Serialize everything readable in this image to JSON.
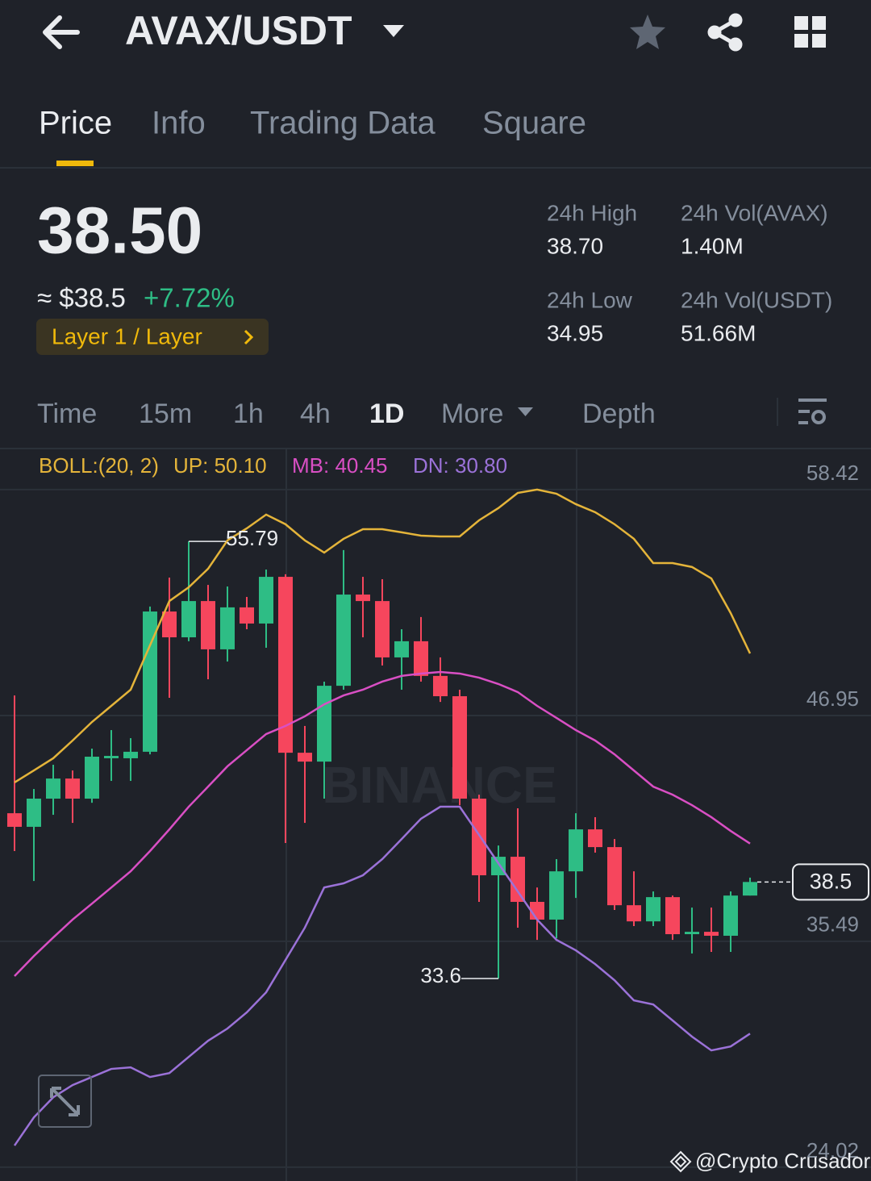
{
  "header": {
    "pair": "AVAX/USDT"
  },
  "tabs": [
    "Price",
    "Info",
    "Trading Data",
    "Square"
  ],
  "price": {
    "last": "38.50",
    "fiat": "≈ $38.5",
    "change": "+7.72%",
    "tag": "Layer 1 / Layer"
  },
  "stats": [
    {
      "label": "24h High",
      "value": "38.70"
    },
    {
      "label": "24h Vol(AVAX)",
      "value": "1.40M"
    },
    {
      "label": "24h Low",
      "value": "34.95"
    },
    {
      "label": "24h Vol(USDT)",
      "value": "51.66M"
    }
  ],
  "intervals": [
    "Time",
    "15m",
    "1h",
    "4h",
    "1D",
    "More",
    "Depth"
  ],
  "watermark": "BINANCE",
  "credit": "@Crypto Crusador",
  "chart_data": {
    "type": "candlestick",
    "indicator": "BOLL:(20, 2)",
    "up_color": "#2ebd85",
    "down_color": "#f6465d",
    "open": [
      41.99,
      41.3,
      42.73,
      43.75,
      42.73,
      44.78,
      44.78,
      45.11,
      52.23,
      50.92,
      52.76,
      50.31,
      52.44,
      51.62,
      53.99,
      45.06,
      44.61,
      48.46,
      53.09,
      52.76,
      49.9,
      50.72,
      48.96,
      47.93,
      42.73,
      38.84,
      39.78,
      37.49,
      36.59,
      39.04,
      41.17,
      40.27,
      37.32,
      36.5,
      37.73,
      35.85,
      35.97,
      35.77,
      37.81
    ],
    "high": [
      47.97,
      43.22,
      44.45,
      44.16,
      45.27,
      46.21,
      45.8,
      52.48,
      53.95,
      55.79,
      53.58,
      53.5,
      52.97,
      54.36,
      54.12,
      46.42,
      48.67,
      55.35,
      53.99,
      53.87,
      51.33,
      51.95,
      49.9,
      48.26,
      42.93,
      40.35,
      42.24,
      38.22,
      39.66,
      41.99,
      41.79,
      40.68,
      39.04,
      38.02,
      37.81,
      37.2,
      37.2,
      38.02,
      38.72
    ],
    "low": [
      40.07,
      38.55,
      41.91,
      41.5,
      42.52,
      43.63,
      43.63,
      44.98,
      47.85,
      50.72,
      48.79,
      49.69,
      51.33,
      50.39,
      40.48,
      41.5,
      42.73,
      48.26,
      50.92,
      49.49,
      48.26,
      48.67,
      47.64,
      42.4,
      37.49,
      33.6,
      36.18,
      35.56,
      35.64,
      37.69,
      39.99,
      37.08,
      36.26,
      36.26,
      35.56,
      34.87,
      34.95,
      34.95,
      37.81
    ],
    "close": [
      41.3,
      42.73,
      43.75,
      42.73,
      44.86,
      44.9,
      45.11,
      52.23,
      50.92,
      52.76,
      50.31,
      52.44,
      51.62,
      53.99,
      45.06,
      44.61,
      48.46,
      53.09,
      52.76,
      49.9,
      50.72,
      48.96,
      47.93,
      42.73,
      38.84,
      39.78,
      37.49,
      36.59,
      39.04,
      41.17,
      40.27,
      37.32,
      36.5,
      37.73,
      35.85,
      35.97,
      35.77,
      37.81,
      38.5
    ],
    "series": [
      {
        "name": "UP: 50.10",
        "color": "#e4b43a",
        "values": [
          43.55,
          44.16,
          44.78,
          45.68,
          46.62,
          47.44,
          48.26,
          50.51,
          52.76,
          53.46,
          54.4,
          55.84,
          56.45,
          57.15,
          56.66,
          55.84,
          55.22,
          55.92,
          56.41,
          56.41,
          56.25,
          56.08,
          56.04,
          56.04,
          56.86,
          57.48,
          58.25,
          58.42,
          58.21,
          57.68,
          57.27,
          56.66,
          55.92,
          54.69,
          54.69,
          54.49,
          53.91,
          52.15,
          50.1
        ]
      },
      {
        "name": "MB: 40.45",
        "color": "#d94fc4",
        "values": [
          33.72,
          34.74,
          35.68,
          36.59,
          37.4,
          38.22,
          39.04,
          40.07,
          41.17,
          42.32,
          43.34,
          44.37,
          45.19,
          46.01,
          46.42,
          46.91,
          47.52,
          47.97,
          48.26,
          48.67,
          48.96,
          49.08,
          49.16,
          49.08,
          48.87,
          48.55,
          48.14,
          47.44,
          46.83,
          46.21,
          45.68,
          44.98,
          44.16,
          43.34,
          42.93,
          42.4,
          41.79,
          41.09,
          40.45
        ]
      },
      {
        "name": "DN: 30.80",
        "color": "#9b72d8",
        "values": [
          25.12,
          26.55,
          27.57,
          28.19,
          28.6,
          29.01,
          29.09,
          28.6,
          28.8,
          29.62,
          30.44,
          31.06,
          31.88,
          32.9,
          34.54,
          36.18,
          38.22,
          38.43,
          38.84,
          39.66,
          40.68,
          41.71,
          42.32,
          42.32,
          40.89,
          39.45,
          38.02,
          36.59,
          35.56,
          35.03,
          34.33,
          33.51,
          32.49,
          32.28,
          31.47,
          30.65,
          29.95,
          30.15,
          30.8
        ]
      }
    ],
    "ylim": [
      23.32,
      60.34
    ],
    "yticks": [
      58.42,
      46.95,
      35.49,
      24.02
    ],
    "grid": true
  }
}
